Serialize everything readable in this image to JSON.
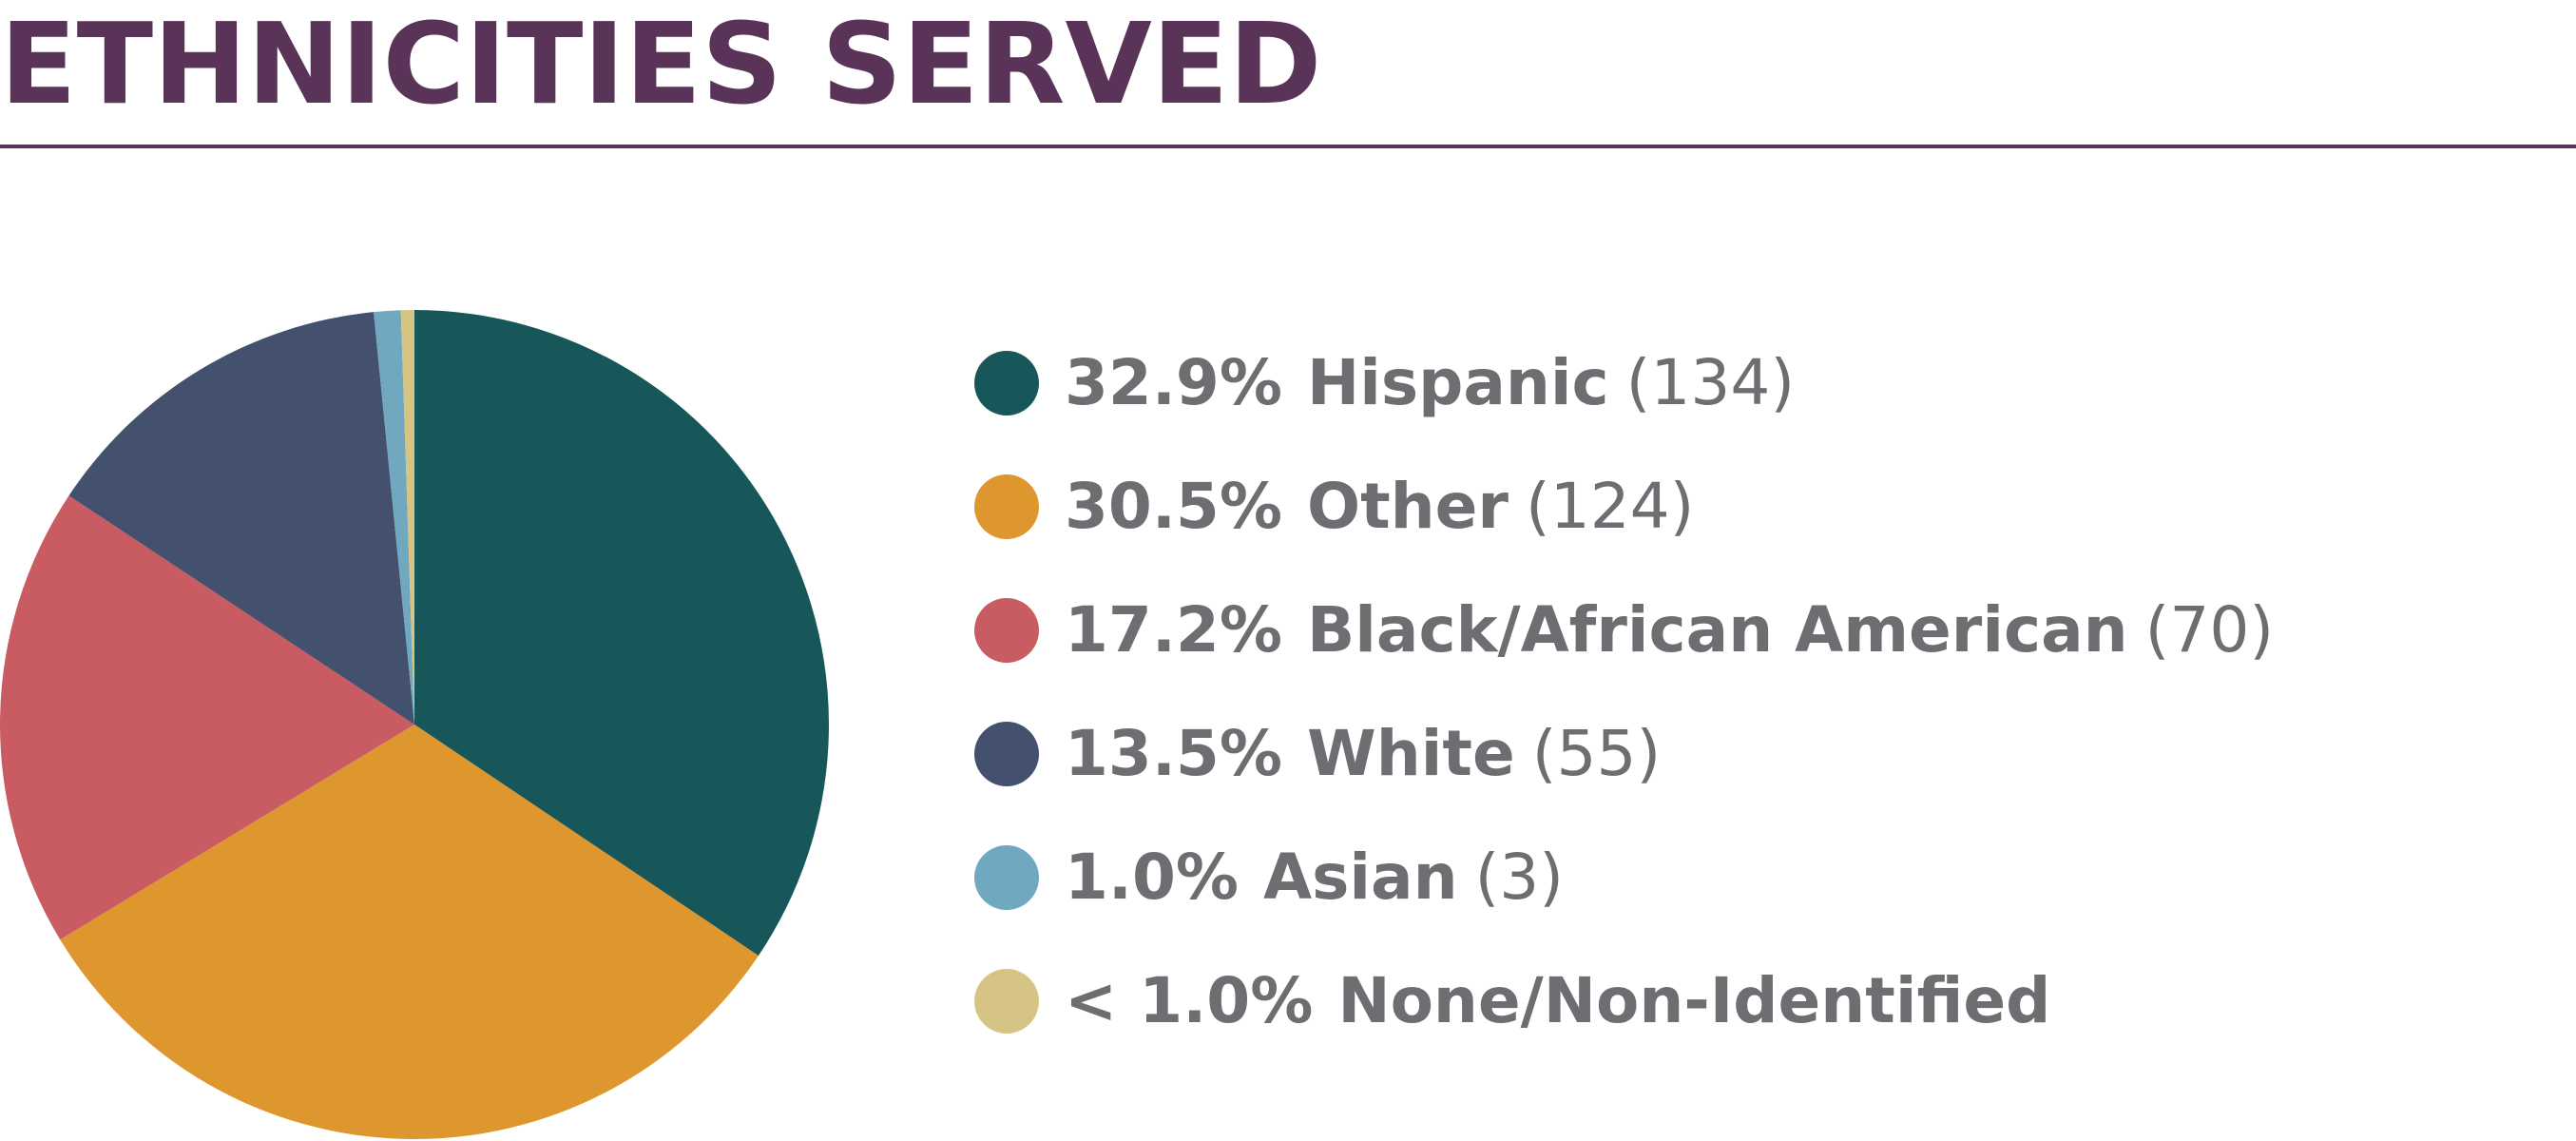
{
  "chart_data": {
    "type": "pie",
    "title": "ETHNICITIES SERVED",
    "categories": [
      "Hispanic",
      "Other",
      "Black/African American",
      "White",
      "Asian",
      "None/Non-Identified"
    ],
    "values": [
      32.9,
      30.5,
      17.2,
      13.5,
      1.0,
      0.5
    ],
    "value_labels": [
      "32.9%",
      "30.5%",
      "17.2%",
      "13.5%",
      "1.0%",
      "< 1.0%"
    ],
    "count_labels": [
      "(134)",
      "(124)",
      "(70)",
      "(55)",
      "(3)",
      null
    ],
    "colors": [
      "#17575a",
      "#de972e",
      "#c95b63",
      "#43516f",
      "#6fa8bf",
      "#d6c485"
    ]
  }
}
